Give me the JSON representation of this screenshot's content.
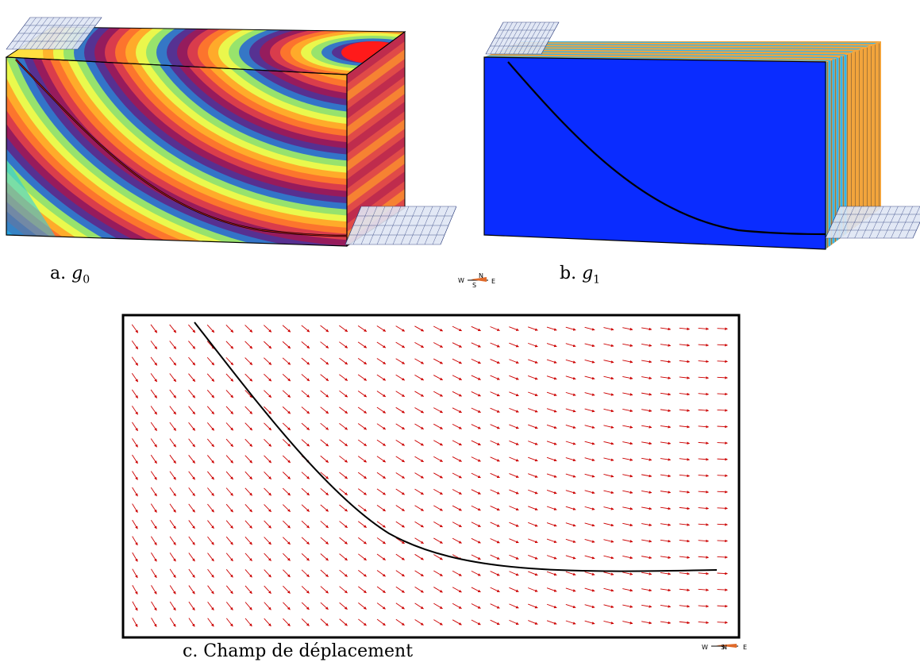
{
  "figure": {
    "panels": [
      {
        "id": "a",
        "caption_prefix": "a.",
        "caption_symbol": "g",
        "caption_sub": "0"
      },
      {
        "id": "b",
        "caption_prefix": "b.",
        "caption_symbol": "g",
        "caption_sub": "1"
      },
      {
        "id": "c",
        "caption": "c. Champ de déplacement"
      }
    ],
    "compass": {
      "west": "W",
      "north": "N",
      "south": "S",
      "east": "E"
    },
    "colors": {
      "horizon_line": "#000000",
      "arrow": "#cc0000",
      "g1_face": "#0a2cff",
      "g1_layers": [
        "#2fb6f2",
        "#f2a43c"
      ],
      "g0_palette": [
        "#00d4ff",
        "#5a3aa0",
        "#9c1650",
        "#d84040",
        "#ff9a1e",
        "#f2ff3c",
        "#8fe070"
      ],
      "surface_mesh": "#2a3a7a"
    }
  }
}
